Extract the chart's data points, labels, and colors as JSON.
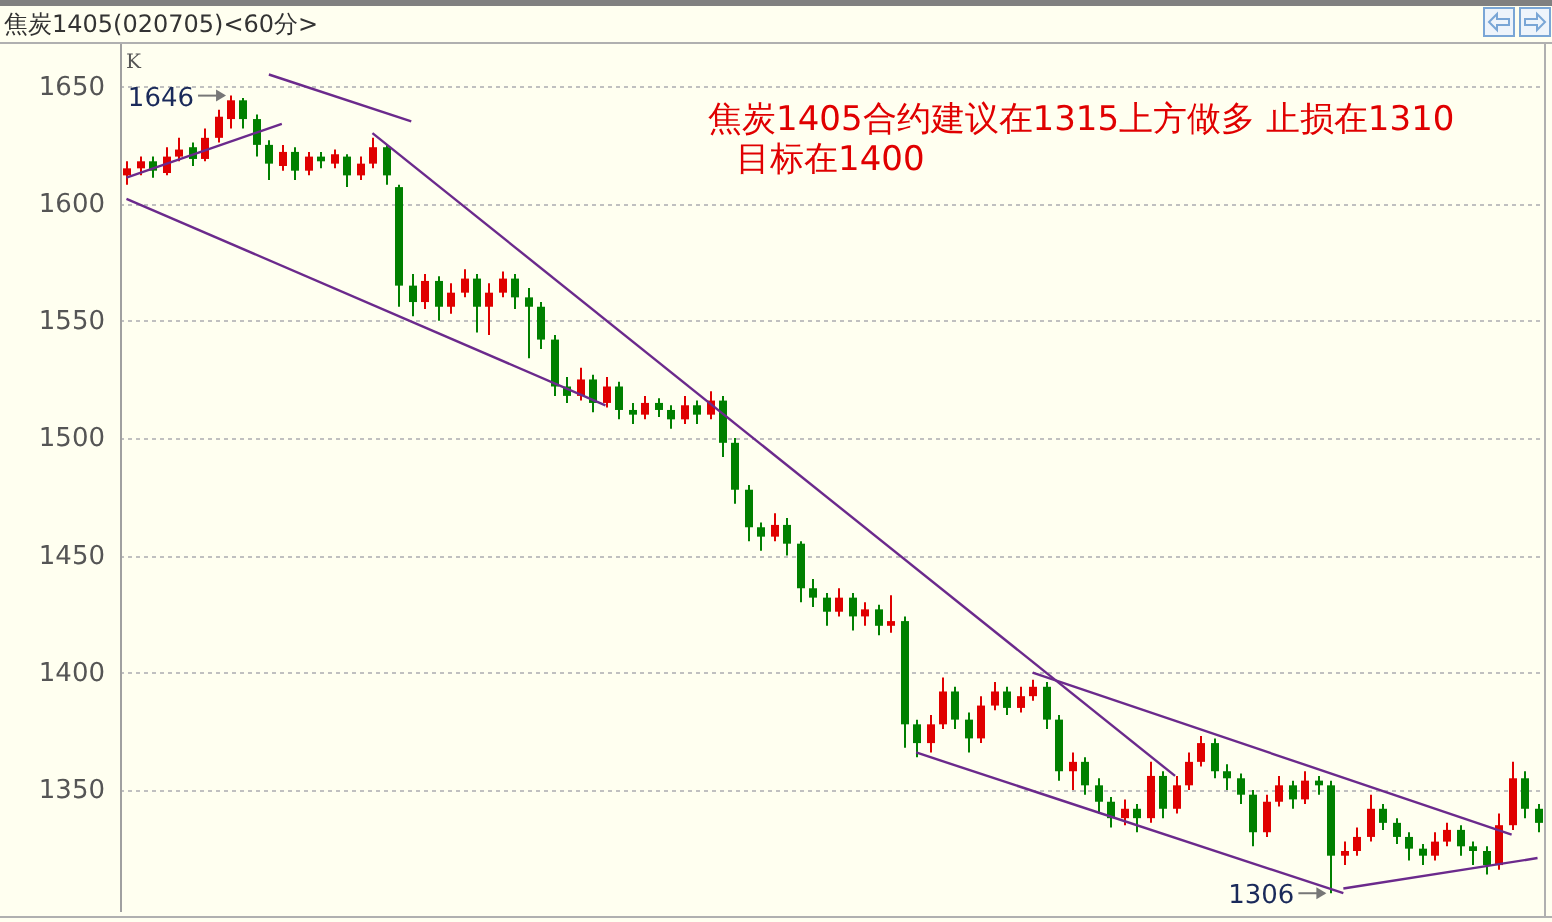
{
  "chart_data": {
    "type": "candlestick",
    "title": "焦炭1405(020705)<60分>",
    "ylabel": "K",
    "categories": [
      null,
      null,
      null,
      null,
      null,
      null,
      null,
      null,
      null,
      null,
      null,
      null,
      null,
      null,
      null,
      null,
      null,
      null,
      null,
      null,
      null,
      null,
      null,
      null,
      null,
      null,
      null,
      null,
      null,
      null,
      null,
      null,
      null,
      null,
      null,
      null,
      null,
      null,
      null,
      null,
      null,
      null,
      null,
      null,
      null,
      null,
      null,
      null,
      null,
      null,
      null,
      null,
      null,
      null,
      null,
      null,
      null,
      null,
      null,
      null,
      null,
      null,
      null,
      null,
      null,
      null,
      null,
      null,
      null,
      null,
      null,
      null,
      null,
      null,
      null,
      null,
      null,
      null,
      null,
      null,
      null,
      null,
      null,
      null,
      null,
      null,
      null,
      null,
      null,
      null,
      null,
      null,
      null,
      null,
      null,
      null,
      null,
      null,
      null,
      null,
      null,
      null,
      null,
      null,
      null,
      null,
      null,
      null,
      null,
      null
    ],
    "ylim": [
      1298,
      1668
    ],
    "yticks": [
      1350,
      1400,
      1450,
      1500,
      1550,
      1600,
      1650
    ],
    "grid": "y",
    "tick_labels": "y",
    "series": [
      {
        "ohlc": [
          [
            1612,
            1618,
            1608,
            1615
          ],
          [
            1615,
            1620,
            1612,
            1618
          ],
          [
            1618,
            1620,
            1611,
            1614
          ],
          [
            1613,
            1624,
            1612,
            1620
          ],
          [
            1620,
            1628,
            1618,
            1623
          ],
          [
            1624,
            1626,
            1616,
            1619
          ],
          [
            1619,
            1632,
            1618,
            1628
          ],
          [
            1628,
            1640,
            1626,
            1637
          ],
          [
            1636,
            1646,
            1632,
            1644
          ],
          [
            1644,
            1645,
            1632,
            1636
          ],
          [
            1636,
            1638,
            1620,
            1625
          ],
          [
            1625,
            1627,
            1610,
            1617
          ],
          [
            1616,
            1625,
            1614,
            1622
          ],
          [
            1622,
            1624,
            1610,
            1614
          ],
          [
            1614,
            1622,
            1612,
            1620
          ],
          [
            1620,
            1622,
            1615,
            1618
          ],
          [
            1617,
            1623,
            1615,
            1621
          ],
          [
            1620,
            1621,
            1607,
            1612
          ],
          [
            1612,
            1620,
            1610,
            1617
          ],
          [
            1617,
            1628,
            1615,
            1624
          ],
          [
            1624,
            1625,
            1608,
            1612
          ],
          [
            1607,
            1608,
            1556,
            1565
          ],
          [
            1565,
            1570,
            1552,
            1558
          ],
          [
            1558,
            1570,
            1555,
            1567
          ],
          [
            1567,
            1569,
            1550,
            1556
          ],
          [
            1556,
            1566,
            1553,
            1562
          ],
          [
            1562,
            1572,
            1560,
            1568
          ],
          [
            1568,
            1570,
            1545,
            1556
          ],
          [
            1556,
            1566,
            1544,
            1562
          ],
          [
            1562,
            1571,
            1560,
            1568
          ],
          [
            1568,
            1570,
            1555,
            1560
          ],
          [
            1560,
            1564,
            1534,
            1556
          ],
          [
            1556,
            1558,
            1538,
            1542
          ],
          [
            1542,
            1544,
            1518,
            1522
          ],
          [
            1522,
            1526,
            1515,
            1518
          ],
          [
            1518,
            1530,
            1516,
            1525
          ],
          [
            1525,
            1527,
            1511,
            1515
          ],
          [
            1515,
            1526,
            1513,
            1522
          ],
          [
            1522,
            1524,
            1508,
            1512
          ],
          [
            1512,
            1515,
            1506,
            1510
          ],
          [
            1510,
            1518,
            1508,
            1515
          ],
          [
            1515,
            1517,
            1509,
            1512
          ],
          [
            1512,
            1514,
            1504,
            1508
          ],
          [
            1508,
            1518,
            1506,
            1514
          ],
          [
            1514,
            1516,
            1506,
            1510
          ],
          [
            1510,
            1520,
            1508,
            1516
          ],
          [
            1516,
            1518,
            1492,
            1498
          ],
          [
            1498,
            1500,
            1472,
            1478
          ],
          [
            1478,
            1480,
            1456,
            1462
          ],
          [
            1462,
            1464,
            1452,
            1458
          ],
          [
            1458,
            1468,
            1456,
            1463
          ],
          [
            1463,
            1466,
            1450,
            1455
          ],
          [
            1455,
            1456,
            1430,
            1436
          ],
          [
            1436,
            1440,
            1428,
            1432
          ],
          [
            1432,
            1434,
            1420,
            1426
          ],
          [
            1426,
            1436,
            1424,
            1432
          ],
          [
            1432,
            1434,
            1418,
            1424
          ],
          [
            1424,
            1430,
            1420,
            1427
          ],
          [
            1427,
            1429,
            1416,
            1420
          ],
          [
            1420,
            1433,
            1417,
            1422
          ],
          [
            1422,
            1424,
            1368,
            1378
          ],
          [
            1378,
            1380,
            1364,
            1370
          ],
          [
            1370,
            1382,
            1366,
            1378
          ],
          [
            1378,
            1398,
            1376,
            1392
          ],
          [
            1392,
            1394,
            1376,
            1380
          ],
          [
            1380,
            1383,
            1366,
            1372
          ],
          [
            1372,
            1390,
            1370,
            1386
          ],
          [
            1386,
            1396,
            1384,
            1392
          ],
          [
            1392,
            1394,
            1382,
            1385
          ],
          [
            1385,
            1394,
            1383,
            1390
          ],
          [
            1390,
            1397,
            1388,
            1394
          ],
          [
            1394,
            1396,
            1376,
            1380
          ],
          [
            1380,
            1382,
            1354,
            1358
          ],
          [
            1358,
            1366,
            1350,
            1362
          ],
          [
            1362,
            1364,
            1348,
            1352
          ],
          [
            1352,
            1355,
            1340,
            1345
          ],
          [
            1345,
            1347,
            1334,
            1338
          ],
          [
            1338,
            1346,
            1335,
            1342
          ],
          [
            1342,
            1344,
            1332,
            1338
          ],
          [
            1338,
            1362,
            1336,
            1356
          ],
          [
            1356,
            1358,
            1338,
            1342
          ],
          [
            1342,
            1356,
            1340,
            1352
          ],
          [
            1352,
            1366,
            1350,
            1362
          ],
          [
            1362,
            1373,
            1360,
            1370
          ],
          [
            1370,
            1372,
            1355,
            1358
          ],
          [
            1358,
            1361,
            1350,
            1355
          ],
          [
            1355,
            1357,
            1344,
            1348
          ],
          [
            1348,
            1350,
            1326,
            1332
          ],
          [
            1332,
            1348,
            1330,
            1345
          ],
          [
            1345,
            1356,
            1343,
            1352
          ],
          [
            1352,
            1354,
            1342,
            1346
          ],
          [
            1346,
            1358,
            1344,
            1354
          ],
          [
            1354,
            1356,
            1348,
            1352
          ],
          [
            1352,
            1354,
            1306,
            1322
          ],
          [
            1322,
            1328,
            1318,
            1324
          ],
          [
            1324,
            1334,
            1322,
            1330
          ],
          [
            1330,
            1348,
            1328,
            1342
          ],
          [
            1342,
            1344,
            1333,
            1336
          ],
          [
            1336,
            1338,
            1327,
            1330
          ],
          [
            1330,
            1332,
            1320,
            1325
          ],
          [
            1325,
            1327,
            1318,
            1322
          ],
          [
            1322,
            1332,
            1320,
            1328
          ],
          [
            1328,
            1336,
            1326,
            1333
          ],
          [
            1333,
            1335,
            1322,
            1326
          ],
          [
            1326,
            1328,
            1318,
            1324
          ],
          [
            1324,
            1326,
            1314,
            1318
          ],
          [
            1318,
            1340,
            1316,
            1335
          ],
          [
            1335,
            1362,
            1333,
            1355
          ],
          [
            1355,
            1358,
            1338,
            1342
          ],
          [
            1342,
            1344,
            1332,
            1336
          ]
        ],
        "colors": [
          "#e00000",
          "#e00000",
          "#008000",
          "#e00000",
          "#e00000",
          "#008000",
          "#e00000",
          "#e00000",
          "#e00000",
          "#008000",
          "#008000",
          "#008000",
          "#e00000",
          "#008000",
          "#e00000",
          "#008000",
          "#e00000",
          "#008000",
          "#e00000",
          "#e00000",
          "#008000",
          "#008000",
          "#008000",
          "#e00000",
          "#008000",
          "#e00000",
          "#e00000",
          "#008000",
          "#e00000",
          "#e00000",
          "#008000",
          "#008000",
          "#008000",
          "#008000",
          "#008000",
          "#e00000",
          "#008000",
          "#e00000",
          "#008000",
          "#008000",
          "#e00000",
          "#008000",
          "#008000",
          "#e00000",
          "#008000",
          "#e00000",
          "#008000",
          "#008000",
          "#008000",
          "#008000",
          "#e00000",
          "#008000",
          "#008000",
          "#008000",
          "#008000",
          "#e00000",
          "#008000",
          "#e00000",
          "#008000",
          "#e00000",
          "#008000",
          "#008000",
          "#e00000",
          "#e00000",
          "#008000",
          "#008000",
          "#e00000",
          "#e00000",
          "#008000",
          "#e00000",
          "#e00000",
          "#008000",
          "#008000",
          "#e00000",
          "#008000",
          "#008000",
          "#008000",
          "#e00000",
          "#008000",
          "#e00000",
          "#008000",
          "#e00000",
          "#e00000",
          "#e00000",
          "#008000",
          "#008000",
          "#008000",
          "#008000",
          "#e00000",
          "#e00000",
          "#008000",
          "#e00000",
          "#008000",
          "#008000",
          "#e00000",
          "#e00000",
          "#e00000",
          "#008000",
          "#008000",
          "#008000",
          "#008000",
          "#e00000",
          "#e00000",
          "#008000",
          "#008000",
          "#008000",
          "#e00000",
          "#e00000",
          "#008000",
          "#008000"
        ]
      },
      {
        "type": "line",
        "color": "#6b2a8c",
        "values": [
          1602,
          null,
          null,
          null,
          null,
          null,
          null,
          null,
          null,
          null,
          null,
          null,
          null,
          null,
          null,
          null,
          null,
          null,
          null,
          null,
          null,
          null,
          null,
          null,
          null,
          null,
          null,
          null,
          null,
          null,
          null,
          null,
          null,
          null,
          null,
          null,
          null,
          1514,
          null,
          null,
          null,
          null,
          null,
          null,
          null,
          null,
          null,
          null,
          null,
          null,
          null,
          null,
          null,
          null,
          null,
          null,
          null,
          null,
          null,
          null,
          null,
          null,
          null,
          null,
          null,
          null,
          null,
          null,
          null,
          null,
          null,
          null,
          null,
          null,
          null,
          null,
          null,
          null,
          null,
          null,
          null,
          null,
          null,
          null,
          null,
          null,
          null,
          null,
          null,
          null,
          null,
          null,
          null,
          null,
          null,
          null,
          null,
          null,
          null,
          null,
          null,
          null,
          null,
          null,
          null,
          null,
          null,
          null,
          null,
          null
        ]
      },
      {
        "type": "line",
        "color": "#6b2a8c",
        "values": [
          1611,
          null,
          null,
          null,
          null,
          null,
          null,
          null,
          null,
          null,
          null,
          null,
          1634,
          null,
          null,
          null,
          null,
          null,
          null,
          null,
          null,
          null,
          null,
          null,
          null,
          null,
          null,
          null,
          null,
          null,
          null,
          null,
          null,
          null,
          null,
          null,
          null,
          null,
          null,
          null,
          null,
          null,
          null,
          null,
          null,
          null,
          null,
          null,
          null,
          null,
          null,
          null,
          null,
          null,
          null,
          null,
          null,
          null,
          null,
          null,
          null,
          null,
          null,
          null,
          null,
          null,
          null,
          null,
          null,
          null,
          null,
          null,
          null,
          null,
          null,
          null,
          null,
          null,
          null,
          null,
          null,
          null,
          null,
          null,
          null,
          null,
          null,
          null,
          null,
          null,
          null,
          null,
          null,
          null,
          null,
          null,
          null,
          null,
          null,
          null,
          null,
          null,
          null,
          null,
          null,
          null,
          null,
          null,
          null,
          null
        ]
      },
      {
        "type": "line",
        "color": "#6b2a8c",
        "values": [
          null,
          null,
          null,
          null,
          null,
          null,
          null,
          null,
          null,
          null,
          null,
          1655,
          null,
          null,
          null,
          null,
          null,
          null,
          null,
          null,
          null,
          null,
          1635,
          null,
          null,
          null,
          null,
          null,
          null,
          null,
          null,
          null,
          null,
          null,
          null,
          null,
          null,
          null,
          null,
          null,
          null,
          null,
          null,
          null,
          null,
          null,
          null,
          null,
          null,
          null,
          null,
          null,
          null,
          null,
          null,
          null,
          null,
          null,
          null,
          null,
          null,
          null,
          null,
          null,
          null,
          null,
          null,
          null,
          null,
          null,
          null,
          null,
          null,
          null,
          null,
          null,
          null,
          null,
          null,
          null,
          null,
          null,
          null,
          null,
          null,
          null,
          null,
          null,
          null,
          null,
          null,
          null,
          null,
          null,
          null,
          null,
          null,
          null,
          null,
          null,
          null,
          null,
          null,
          null,
          null,
          null,
          null,
          null,
          null,
          null
        ]
      },
      {
        "type": "line",
        "color": "#6b2a8c",
        "values": [
          null,
          null,
          null,
          null,
          null,
          null,
          null,
          null,
          null,
          null,
          null,
          null,
          null,
          null,
          null,
          null,
          null,
          null,
          null,
          1630,
          null,
          null,
          null,
          null,
          null,
          null,
          null,
          null,
          null,
          null,
          null,
          null,
          null,
          null,
          null,
          null,
          null,
          null,
          null,
          null,
          null,
          null,
          null,
          null,
          null,
          null,
          null,
          null,
          null,
          null,
          null,
          null,
          null,
          null,
          null,
          null,
          null,
          null,
          null,
          null,
          null,
          null,
          null,
          null,
          null,
          null,
          null,
          null,
          null,
          null,
          null,
          null,
          null,
          null,
          null,
          null,
          null,
          null,
          null,
          null,
          null,
          1356,
          null,
          null,
          null,
          null,
          null,
          null,
          null,
          null,
          null,
          null,
          null,
          null,
          null,
          null,
          null,
          null,
          null,
          null,
          null,
          null,
          null,
          null,
          null,
          null,
          null,
          null,
          null,
          null
        ]
      },
      {
        "type": "line",
        "color": "#6b2a8c",
        "values": [
          null,
          null,
          null,
          null,
          null,
          null,
          null,
          null,
          null,
          null,
          null,
          null,
          null,
          null,
          null,
          null,
          null,
          null,
          null,
          null,
          null,
          null,
          null,
          null,
          null,
          null,
          null,
          null,
          null,
          null,
          null,
          null,
          null,
          null,
          null,
          null,
          null,
          null,
          null,
          null,
          null,
          null,
          null,
          null,
          null,
          null,
          null,
          null,
          null,
          null,
          null,
          null,
          null,
          null,
          null,
          null,
          null,
          null,
          null,
          null,
          null,
          null,
          null,
          null,
          null,
          null,
          null,
          null,
          null,
          null,
          1400,
          null,
          null,
          null,
          null,
          null,
          null,
          null,
          null,
          null,
          null,
          null,
          null,
          null,
          null,
          null,
          null,
          null,
          null,
          null,
          null,
          null,
          null,
          null,
          null,
          null,
          null,
          null,
          null,
          null,
          null,
          null,
          null,
          null,
          null,
          null,
          null,
          1331,
          null,
          null
        ]
      },
      {
        "type": "line",
        "color": "#6b2a8c",
        "values": [
          null,
          null,
          null,
          null,
          null,
          null,
          null,
          null,
          null,
          null,
          null,
          null,
          null,
          null,
          null,
          null,
          null,
          null,
          null,
          null,
          null,
          null,
          null,
          null,
          null,
          null,
          null,
          null,
          null,
          null,
          null,
          null,
          null,
          null,
          null,
          null,
          null,
          null,
          null,
          null,
          null,
          null,
          null,
          null,
          null,
          null,
          null,
          null,
          null,
          null,
          null,
          null,
          null,
          null,
          null,
          null,
          null,
          null,
          null,
          null,
          null,
          1366,
          null,
          null,
          null,
          null,
          null,
          null,
          null,
          null,
          null,
          null,
          null,
          null,
          null,
          null,
          null,
          null,
          null,
          null,
          null,
          null,
          null,
          null,
          null,
          null,
          null,
          null,
          null,
          null,
          null,
          null,
          null,
          null,
          1306,
          null,
          null,
          null,
          null,
          null,
          null,
          null,
          null,
          null,
          null,
          null,
          null,
          null,
          null,
          null
        ]
      },
      {
        "type": "line",
        "color": "#6b2a8c",
        "values": [
          null,
          null,
          null,
          null,
          null,
          null,
          null,
          null,
          null,
          null,
          null,
          null,
          null,
          null,
          null,
          null,
          null,
          null,
          null,
          null,
          null,
          null,
          null,
          null,
          null,
          null,
          null,
          null,
          null,
          null,
          null,
          null,
          null,
          null,
          null,
          null,
          null,
          null,
          null,
          null,
          null,
          null,
          null,
          null,
          null,
          null,
          null,
          null,
          null,
          null,
          null,
          null,
          null,
          null,
          null,
          null,
          null,
          null,
          null,
          null,
          null,
          null,
          null,
          null,
          null,
          null,
          null,
          null,
          null,
          null,
          null,
          null,
          null,
          null,
          null,
          null,
          null,
          null,
          null,
          null,
          null,
          null,
          null,
          null,
          null,
          null,
          null,
          null,
          null,
          null,
          null,
          null,
          null,
          null,
          1308,
          null,
          null,
          null,
          null,
          null,
          null,
          null,
          null,
          null,
          null,
          null,
          null,
          null,
          null,
          1321
        ]
      }
    ],
    "annotations": [
      "1646",
      "1306",
      "焦炭1405合约建议在1315上方做多 止损在1310",
      "目标在1400"
    ]
  }
}
